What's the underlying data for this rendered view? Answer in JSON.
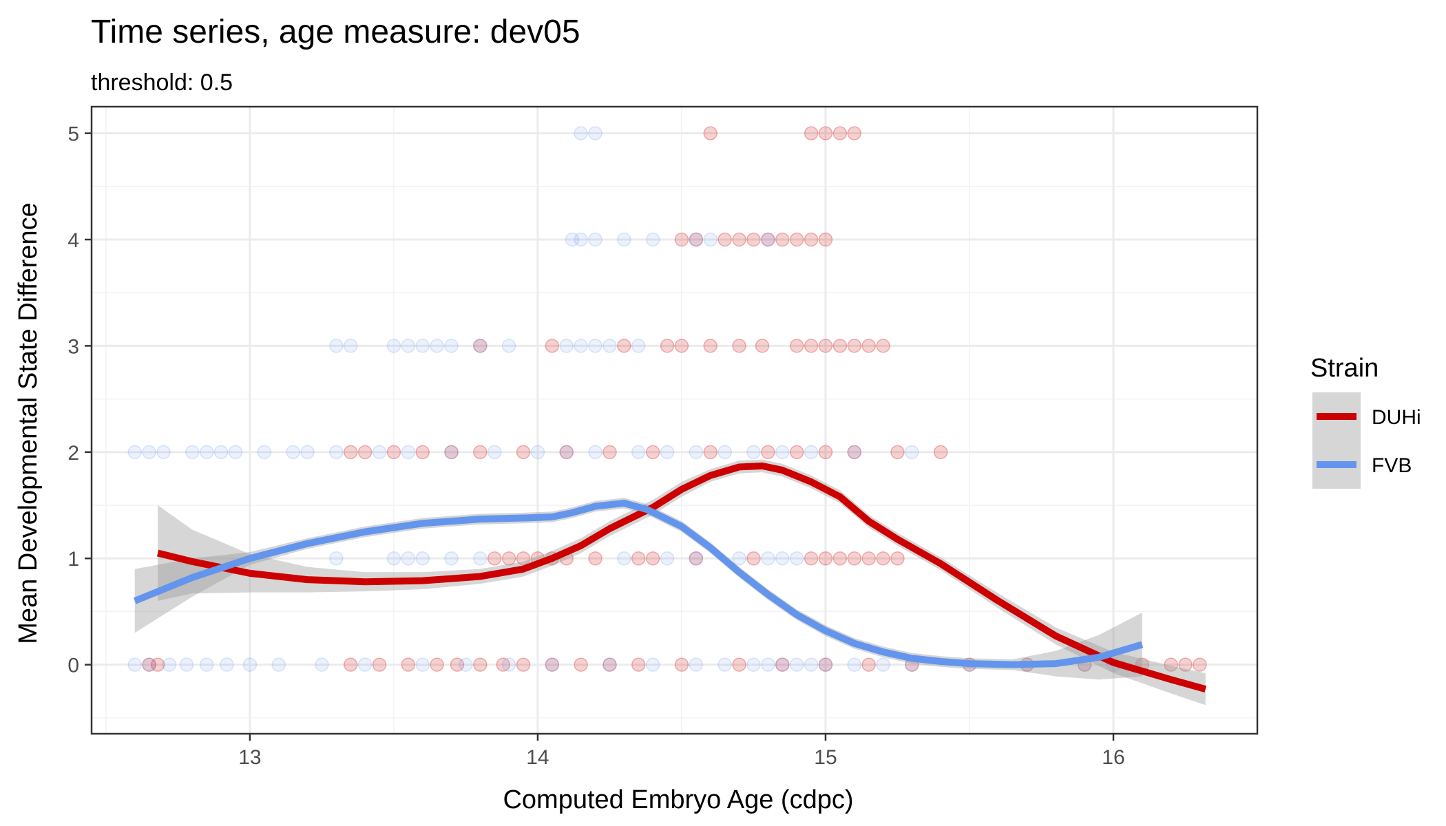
{
  "chart_data": {
    "type": "scatter",
    "title": "Time series, age measure: dev05",
    "subtitle": "threshold: 0.5",
    "xlabel": "Computed Embryo Age (cdpc)",
    "ylabel": "Mean Developmental State Difference",
    "xlim": [
      12.45,
      16.5
    ],
    "ylim": [
      -0.65,
      5.25
    ],
    "xticks": [
      "13",
      "14",
      "15",
      "16"
    ],
    "xtick_values": [
      13,
      14,
      15,
      16
    ],
    "yticks": [
      "0",
      "1",
      "2",
      "3",
      "4",
      "5"
    ],
    "ytick_values": [
      0,
      1,
      2,
      3,
      4,
      5
    ],
    "grid": true,
    "legend": {
      "title": "Strain",
      "placement": "right",
      "entries": [
        "DUHi",
        "FVB"
      ]
    },
    "series": [
      {
        "name": "DUHi",
        "color": "#cc0000",
        "points": {
          "0": [
            12.65,
            12.68,
            13.35,
            13.45,
            13.55,
            13.65,
            13.72,
            13.8,
            13.88,
            13.95,
            14.05,
            14.15,
            14.25,
            14.35,
            14.5,
            14.7,
            14.85,
            15.0,
            15.15,
            15.3,
            15.5,
            15.7,
            15.9,
            16.1,
            16.2,
            16.25,
            16.3
          ],
          "1": [
            13.85,
            13.9,
            13.95,
            14.0,
            14.05,
            14.1,
            14.2,
            14.35,
            14.4,
            14.55,
            14.75,
            14.95,
            15.0,
            15.05,
            15.1,
            15.15,
            15.2,
            15.25
          ],
          "2": [
            13.35,
            13.4,
            13.5,
            13.6,
            13.7,
            13.8,
            13.95,
            14.1,
            14.25,
            14.4,
            14.6,
            14.8,
            14.9,
            15.0,
            15.1,
            15.25,
            15.4
          ],
          "3": [
            13.8,
            14.05,
            14.3,
            14.45,
            14.5,
            14.6,
            14.7,
            14.78,
            14.9,
            14.95,
            15.0,
            15.05,
            15.1,
            15.15,
            15.2
          ],
          "4": [
            14.5,
            14.55,
            14.65,
            14.7,
            14.75,
            14.8,
            14.85,
            14.9,
            14.95,
            15.0
          ],
          "5": [
            14.6,
            14.95,
            15.0,
            15.05,
            15.1
          ]
        },
        "smooth": {
          "x": [
            12.68,
            12.8,
            13.0,
            13.2,
            13.4,
            13.6,
            13.8,
            13.95,
            14.05,
            14.15,
            14.25,
            14.4,
            14.5,
            14.6,
            14.7,
            14.78,
            14.85,
            14.95,
            15.05,
            15.15,
            15.25,
            15.4,
            15.6,
            15.8,
            16.0,
            16.2,
            16.32
          ],
          "y": [
            1.05,
            0.97,
            0.86,
            0.8,
            0.78,
            0.79,
            0.83,
            0.9,
            1.0,
            1.12,
            1.28,
            1.48,
            1.65,
            1.78,
            1.86,
            1.87,
            1.83,
            1.72,
            1.58,
            1.35,
            1.18,
            0.95,
            0.6,
            0.27,
            0.02,
            -0.14,
            -0.23
          ],
          "band": [
            0.45,
            0.3,
            0.18,
            0.12,
            0.09,
            0.08,
            0.07,
            0.07,
            0.07,
            0.07,
            0.07,
            0.07,
            0.07,
            0.06,
            0.06,
            0.06,
            0.06,
            0.06,
            0.06,
            0.06,
            0.06,
            0.06,
            0.07,
            0.08,
            0.1,
            0.13,
            0.15
          ]
        }
      },
      {
        "name": "FVB",
        "color": "#6495ed",
        "points": {
          "0": [
            12.6,
            12.65,
            12.72,
            12.78,
            12.85,
            12.92,
            13.0,
            13.1,
            13.25,
            13.4,
            13.6,
            13.75,
            13.9,
            14.05,
            14.25,
            14.4,
            14.55,
            14.65,
            14.75,
            14.8,
            14.85,
            14.9,
            14.95,
            15.0,
            15.1,
            15.2,
            15.3,
            15.5,
            15.7,
            15.9,
            16.0
          ],
          "1": [
            13.3,
            13.5,
            13.55,
            13.6,
            13.7,
            13.8,
            14.3,
            14.45,
            14.55,
            14.7,
            14.8,
            14.85,
            14.9
          ],
          "2": [
            12.6,
            12.65,
            12.7,
            12.8,
            12.85,
            12.9,
            12.95,
            13.05,
            13.15,
            13.2,
            13.3,
            13.45,
            13.55,
            13.7,
            13.85,
            14.0,
            14.1,
            14.2,
            14.35,
            14.45,
            14.55,
            14.65,
            14.75,
            14.85,
            14.95,
            15.1,
            15.3
          ],
          "3": [
            13.3,
            13.35,
            13.5,
            13.55,
            13.6,
            13.65,
            13.7,
            13.8,
            13.9,
            14.1,
            14.15,
            14.2,
            14.25,
            14.35
          ],
          "4": [
            14.12,
            14.15,
            14.2,
            14.3,
            14.4,
            14.55,
            14.6,
            14.8
          ],
          "5": [
            14.15,
            14.2
          ]
        },
        "smooth": {
          "x": [
            12.6,
            12.8,
            13.0,
            13.2,
            13.4,
            13.6,
            13.8,
            13.95,
            14.05,
            14.12,
            14.2,
            14.3,
            14.38,
            14.5,
            14.6,
            14.7,
            14.8,
            14.9,
            15.0,
            15.1,
            15.2,
            15.3,
            15.4,
            15.5,
            15.65,
            15.8,
            15.95,
            16.1
          ],
          "y": [
            0.6,
            0.82,
            1.0,
            1.14,
            1.25,
            1.33,
            1.37,
            1.38,
            1.39,
            1.43,
            1.49,
            1.52,
            1.46,
            1.3,
            1.1,
            0.87,
            0.66,
            0.47,
            0.32,
            0.2,
            0.12,
            0.06,
            0.03,
            0.01,
            0.0,
            0.01,
            0.07,
            0.19
          ]
        }
      }
    ]
  }
}
